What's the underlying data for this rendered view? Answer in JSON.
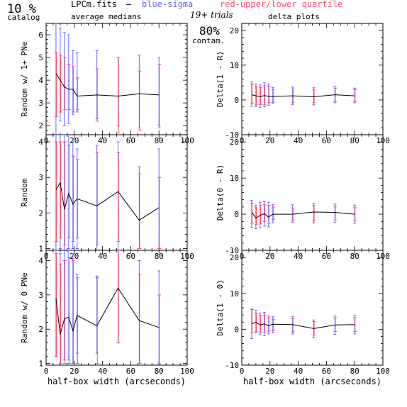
{
  "header": {
    "catalog_pct": "10 %",
    "catalog_label": "catalog",
    "filename": "LPCm.fits",
    "dash": "–",
    "sigma_label": "blue-sigma",
    "quartile_label": "red-upper/lower quartile",
    "avg_label": "average medians",
    "trials_label": "19+ trials",
    "delta_label": "delta plots",
    "contam_pct": "80%",
    "contam_label": "contam."
  },
  "colors": {
    "line": "#000000",
    "sigma": "#6666ff",
    "quartile": "#ff4d6d"
  },
  "chart_data": [
    {
      "type": "line",
      "panel": "left-top",
      "ylabel": "Random w/ 1+ PNe",
      "xlabel": "",
      "xlim": [
        0,
        100
      ],
      "ylim": [
        1.6,
        6.5
      ],
      "xticks": [
        "0",
        "20",
        "40",
        "60",
        "80",
        "100"
      ],
      "yticks": [
        "2",
        "3",
        "4",
        "5",
        "6"
      ],
      "x": [
        7,
        10,
        13,
        16,
        19,
        22,
        36,
        51,
        66,
        80
      ],
      "y": [
        4.3,
        4.0,
        3.7,
        3.6,
        3.6,
        3.3,
        3.35,
        3.3,
        3.4,
        3.35
      ],
      "sigma": [
        [
          1.6,
          6.5
        ],
        [
          2.2,
          6.3
        ],
        [
          2.0,
          6.1
        ],
        [
          2.1,
          6.0
        ],
        [
          2.5,
          5.3
        ],
        [
          2.6,
          5.2
        ],
        [
          2.3,
          5.3
        ],
        [
          2.0,
          5.0
        ],
        [
          1.9,
          5.1
        ],
        [
          2.0,
          5.0
        ]
      ],
      "quartile": [
        [
          2.4,
          5.2
        ],
        [
          2.6,
          5.1
        ],
        [
          2.7,
          5.0
        ],
        [
          2.7,
          4.7
        ],
        [
          2.6,
          4.6
        ],
        [
          2.7,
          4.1
        ],
        [
          2.2,
          4.5
        ],
        [
          1.7,
          5.0
        ],
        [
          1.8,
          4.4
        ],
        [
          1.9,
          4.7
        ]
      ]
    },
    {
      "type": "line",
      "panel": "left-middle",
      "ylabel": "Random",
      "xlabel": "",
      "xlim": [
        0,
        100
      ],
      "ylim": [
        0.95,
        4.2
      ],
      "xticks": [
        "0",
        "20",
        "40",
        "60",
        "80",
        "100"
      ],
      "yticks": [
        "1",
        "2",
        "3",
        "4"
      ],
      "x": [
        7,
        10,
        13,
        16,
        19,
        22,
        36,
        51,
        66,
        80
      ],
      "y": [
        2.65,
        2.85,
        2.1,
        2.55,
        2.25,
        2.4,
        2.2,
        2.6,
        1.8,
        2.15
      ],
      "sigma": [
        [
          0.95,
          4.2
        ],
        [
          1.0,
          4.2
        ],
        [
          0.95,
          4.2
        ],
        [
          1.0,
          4.2
        ],
        [
          1.0,
          4.0
        ],
        [
          1.0,
          3.8
        ],
        [
          0.95,
          3.9
        ],
        [
          0.95,
          4.0
        ],
        [
          1.0,
          3.3
        ],
        [
          1.0,
          3.8
        ]
      ],
      "quartile": [
        [
          1.2,
          4.0
        ],
        [
          1.3,
          4.0
        ],
        [
          1.1,
          4.0
        ],
        [
          1.3,
          3.9
        ],
        [
          1.2,
          3.6
        ],
        [
          1.3,
          3.5
        ],
        [
          1.1,
          3.7
        ],
        [
          1.2,
          3.7
        ],
        [
          1.0,
          3.1
        ],
        [
          1.0,
          3.0
        ]
      ]
    },
    {
      "type": "line",
      "panel": "left-bottom",
      "ylabel": "Random w/ 0 PNe",
      "xlabel": "half-box width (arcseconds)",
      "xlim": [
        0,
        100
      ],
      "ylim": [
        0.95,
        4.3
      ],
      "xticks": [
        "0",
        "20",
        "40",
        "60",
        "80",
        "100"
      ],
      "yticks": [
        "1",
        "2",
        "3",
        "4"
      ],
      "x": [
        7,
        10,
        13,
        16,
        19,
        22,
        36,
        51,
        66,
        80
      ],
      "y": [
        2.9,
        1.85,
        2.3,
        2.35,
        1.95,
        2.4,
        2.1,
        3.2,
        2.25,
        2.05
      ],
      "sigma": [
        [
          1.2,
          4.3
        ],
        [
          1.0,
          4.2
        ],
        [
          1.1,
          4.35
        ],
        [
          1.1,
          4.3
        ],
        [
          1.0,
          4.2
        ],
        [
          1.3,
          3.6
        ],
        [
          1.3,
          3.55
        ],
        [
          1.6,
          4.3
        ],
        [
          1.0,
          4.0
        ],
        [
          1.0,
          3.7
        ]
      ],
      "quartile": [
        [
          1.2,
          4.2
        ],
        [
          1.0,
          3.9
        ],
        [
          1.0,
          4.0
        ],
        [
          1.0,
          4.1
        ],
        [
          1.0,
          4.0
        ],
        [
          1.0,
          3.5
        ],
        [
          1.0,
          3.5
        ],
        [
          1.6,
          4.3
        ],
        [
          1.0,
          3.6
        ],
        [
          1.0,
          3.0
        ]
      ]
    },
    {
      "type": "line",
      "panel": "right-top",
      "ylabel": "Delta(1 - R)",
      "xlabel": "",
      "xlim": [
        0,
        100
      ],
      "ylim": [
        -10,
        22
      ],
      "xticks": [
        "0",
        "20",
        "40",
        "60",
        "80",
        "100"
      ],
      "yticks": [
        "-10",
        "0",
        "10",
        "20"
      ],
      "x": [
        7,
        10,
        13,
        16,
        19,
        22,
        36,
        51,
        66,
        80
      ],
      "y": [
        1.5,
        1.2,
        0.9,
        1.3,
        1.0,
        1.0,
        1.2,
        0.9,
        1.5,
        1.2
      ],
      "sigma": [
        [
          -1.8,
          5.2
        ],
        [
          -1.9,
          4.6
        ],
        [
          -2.2,
          4.3
        ],
        [
          -2.0,
          4.9
        ],
        [
          -1.6,
          4.6
        ],
        [
          -1.0,
          3.6
        ],
        [
          -1.3,
          3.7
        ],
        [
          -1.4,
          3.5
        ],
        [
          -0.8,
          3.9
        ],
        [
          -0.8,
          3.4
        ]
      ],
      "quartile": [
        [
          -1.0,
          4.5
        ],
        [
          -1.4,
          3.9
        ],
        [
          -1.3,
          3.6
        ],
        [
          -1.4,
          4.1
        ],
        [
          -0.8,
          3.9
        ],
        [
          -0.6,
          3.0
        ],
        [
          -0.8,
          3.1
        ],
        [
          -0.8,
          2.9
        ],
        [
          -0.4,
          3.4
        ],
        [
          -0.4,
          3.0
        ]
      ]
    },
    {
      "type": "line",
      "panel": "right-middle",
      "ylabel": "Delta(0 - R)",
      "xlabel": "",
      "xlim": [
        0,
        100
      ],
      "ylim": [
        -10,
        22
      ],
      "xticks": [
        "0",
        "20",
        "40",
        "60",
        "80",
        "100"
      ],
      "yticks": [
        "-10",
        "0",
        "10",
        "20"
      ],
      "x": [
        7,
        10,
        13,
        16,
        19,
        22,
        36,
        51,
        66,
        80
      ],
      "y": [
        0.6,
        -1.1,
        -0.3,
        0.1,
        -0.8,
        0.0,
        0.0,
        0.6,
        0.5,
        0.0
      ],
      "sigma": [
        [
          -3.6,
          3.8
        ],
        [
          -4.0,
          2.5
        ],
        [
          -3.8,
          3.3
        ],
        [
          -3.3,
          3.5
        ],
        [
          -3.5,
          3.3
        ],
        [
          -2.4,
          2.7
        ],
        [
          -2.2,
          2.6
        ],
        [
          -2.4,
          3.0
        ],
        [
          -2.3,
          2.8
        ],
        [
          -2.5,
          2.5
        ]
      ],
      "quartile": [
        [
          -2.5,
          3.0
        ],
        [
          -2.8,
          1.8
        ],
        [
          -2.7,
          2.5
        ],
        [
          -2.0,
          2.6
        ],
        [
          -2.5,
          2.4
        ],
        [
          -1.5,
          2.0
        ],
        [
          -1.6,
          1.7
        ],
        [
          -1.8,
          2.4
        ],
        [
          -1.6,
          2.2
        ],
        [
          -1.8,
          1.8
        ]
      ]
    },
    {
      "type": "line",
      "panel": "right-bottom",
      "ylabel": "Delta(1 - 0)",
      "xlabel": "half-box width (arcseconds)",
      "xlim": [
        0,
        100
      ],
      "ylim": [
        -10,
        22
      ],
      "xticks": [
        "0",
        "20",
        "40",
        "60",
        "80",
        "100"
      ],
      "yticks": [
        "-10",
        "0",
        "10",
        "20"
      ],
      "x": [
        7,
        10,
        13,
        16,
        19,
        22,
        36,
        51,
        66,
        80
      ],
      "y": [
        1.5,
        2.0,
        1.2,
        1.5,
        1.0,
        1.4,
        1.3,
        0.2,
        1.2,
        1.3
      ],
      "sigma": [
        [
          -2.6,
          5.6
        ],
        [
          -1.0,
          5.3
        ],
        [
          -1.5,
          4.5
        ],
        [
          -1.8,
          4.7
        ],
        [
          -1.3,
          3.7
        ],
        [
          -1.0,
          3.5
        ],
        [
          -1.3,
          3.6
        ],
        [
          -2.4,
          2.6
        ],
        [
          -1.4,
          3.7
        ],
        [
          -1.3,
          3.8
        ]
      ],
      "quartile": [
        [
          -1.0,
          5.5
        ],
        [
          -0.6,
          4.5
        ],
        [
          -0.8,
          3.9
        ],
        [
          -0.8,
          4.0
        ],
        [
          -0.5,
          3.2
        ],
        [
          -0.4,
          2.8
        ],
        [
          -0.7,
          3.0
        ],
        [
          -1.6,
          2.1
        ],
        [
          -0.6,
          3.2
        ],
        [
          -0.6,
          3.2
        ]
      ]
    }
  ]
}
